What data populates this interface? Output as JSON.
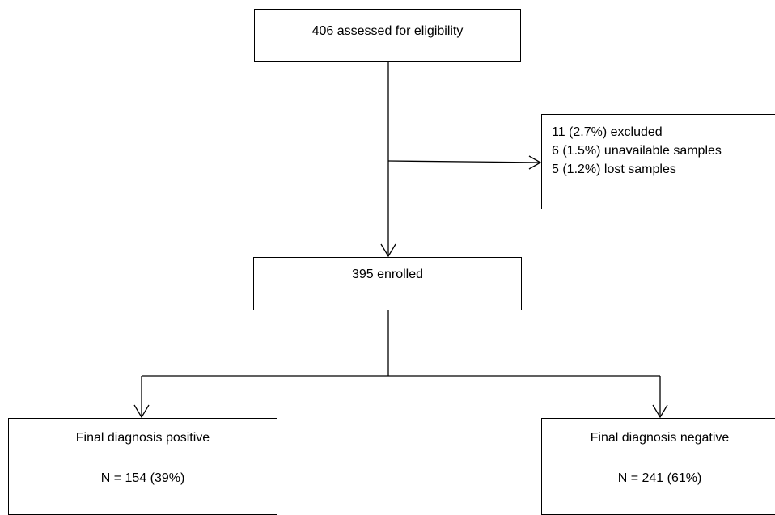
{
  "flowchart": {
    "assessed": {
      "label": "406 assessed for eligibility"
    },
    "excluded": {
      "lines": [
        "11 (2.7%) excluded",
        "6 (1.5%) unavailable samples",
        "5 (1.2%) lost samples"
      ]
    },
    "enrolled": {
      "label": "395 enrolled"
    },
    "positive": {
      "title": "Final diagnosis positive",
      "count": "N = 154 (39%)"
    },
    "negative": {
      "title": "Final diagnosis negative",
      "count": "N = 241 (61%)"
    }
  }
}
